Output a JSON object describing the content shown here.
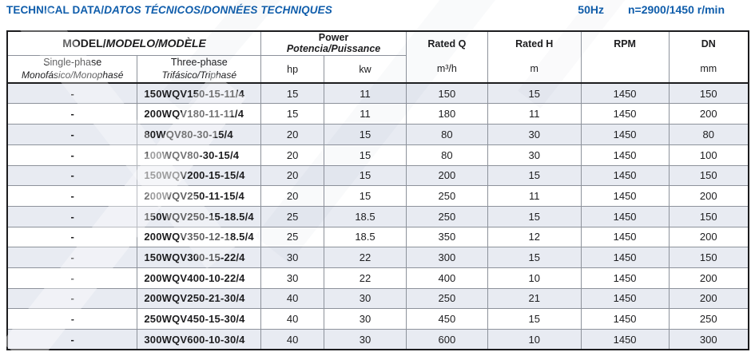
{
  "header": {
    "title_normal": "TECHNICAL DATA/",
    "title_italic": "DATOS TÉCNICOS/DONNÉES TECHNIQUES",
    "freq": "50Hz",
    "speed": "n=2900/1450 r/min"
  },
  "colors": {
    "accent_blue": "#0f5dab",
    "row_band": "#e8ebf2",
    "border_dark": "#1c1c1e",
    "border_gray": "#8d929b"
  },
  "table": {
    "groups": {
      "model_normal": "MODEL/",
      "model_italic": "MODELO/MODÈLE",
      "power_line1": "Power",
      "power_line2": "Potencia/Puissance"
    },
    "columns": [
      {
        "id": "single-phase",
        "label": "Single-phase",
        "sub": "Monofásico/Monophasé"
      },
      {
        "id": "three-phase",
        "label": "Three-phase",
        "sub": "Trifásico/Triphasé"
      },
      {
        "id": "hp",
        "label": "hp"
      },
      {
        "id": "kw",
        "label": "kw"
      },
      {
        "id": "rated-q",
        "label": "Rated Q",
        "unit": "m³/h"
      },
      {
        "id": "rated-h",
        "label": "Rated H",
        "unit": "m"
      },
      {
        "id": "rpm",
        "label": "RPM",
        "unit": ""
      },
      {
        "id": "dn",
        "label": "DN",
        "unit": "mm"
      }
    ],
    "rows": [
      [
        "-",
        "150WQV150-15-11/4",
        "15",
        "11",
        "150",
        "15",
        "1450",
        "150"
      ],
      [
        "-",
        "200WQV180-11-11/4",
        "15",
        "11",
        "180",
        "11",
        "1450",
        "200"
      ],
      [
        "-",
        "80WQV80-30-15/4",
        "20",
        "15",
        "80",
        "30",
        "1450",
        "80"
      ],
      [
        "-",
        "100WQV80-30-15/4",
        "20",
        "15",
        "80",
        "30",
        "1450",
        "100"
      ],
      [
        "-",
        "150WQV200-15-15/4",
        "20",
        "15",
        "200",
        "15",
        "1450",
        "150"
      ],
      [
        "-",
        "200WQV250-11-15/4",
        "20",
        "15",
        "250",
        "11",
        "1450",
        "200"
      ],
      [
        "-",
        "150WQV250-15-18.5/4",
        "25",
        "18.5",
        "250",
        "15",
        "1450",
        "150"
      ],
      [
        "-",
        "200WQV350-12-18.5/4",
        "25",
        "18.5",
        "350",
        "12",
        "1450",
        "200"
      ],
      [
        "-",
        "150WQV300-15-22/4",
        "30",
        "22",
        "300",
        "15",
        "1450",
        "150"
      ],
      [
        "-",
        "200WQV400-10-22/4",
        "30",
        "22",
        "400",
        "10",
        "1450",
        "200"
      ],
      [
        "-",
        "200WQV250-21-30/4",
        "40",
        "30",
        "250",
        "21",
        "1450",
        "200"
      ],
      [
        "-",
        "250WQV450-15-30/4",
        "40",
        "30",
        "450",
        "15",
        "1450",
        "250"
      ],
      [
        "-",
        "300WQV600-10-30/4",
        "40",
        "30",
        "600",
        "10",
        "1450",
        "300"
      ]
    ]
  }
}
